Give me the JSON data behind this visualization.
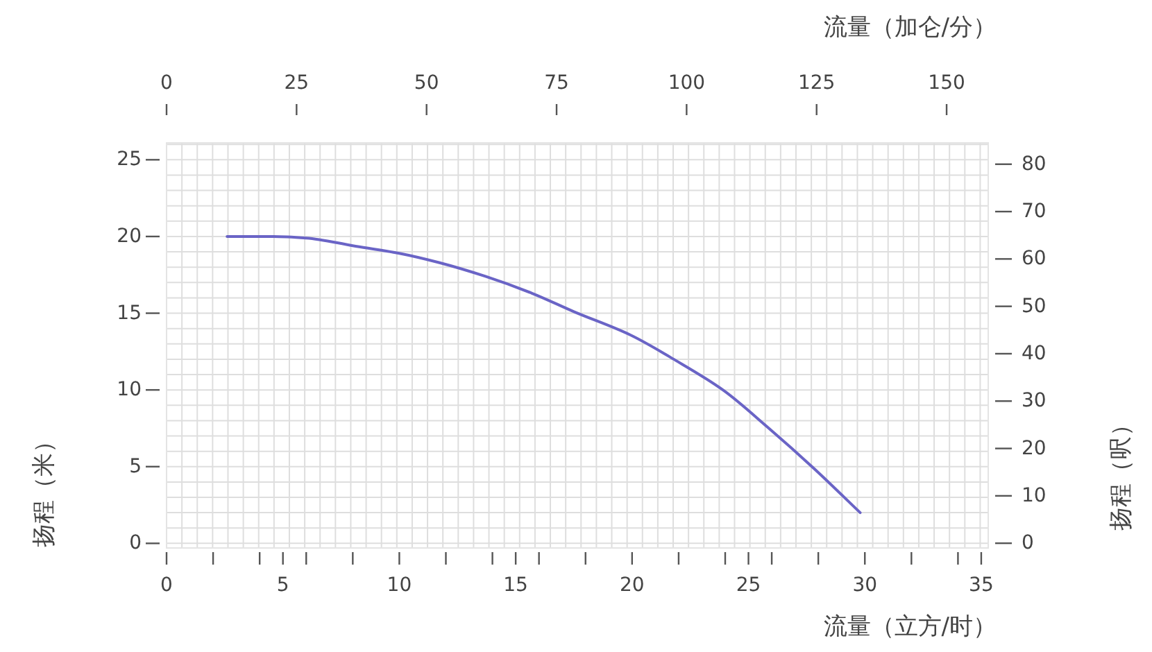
{
  "chart_data": {
    "type": "line",
    "xlabel": "流量（立方/时）",
    "x2label": "流量（加仑/分）",
    "ylabel": "扬程（米）",
    "y2label": "扬程（呎）",
    "xlim": [
      0,
      35.3
    ],
    "xticks": [
      0,
      {
        "value": 2,
        "label": null
      },
      {
        "value": 4,
        "label": null
      },
      5,
      {
        "value": 6,
        "label": null
      },
      {
        "value": 8,
        "label": null
      },
      10,
      {
        "value": 12,
        "label": null
      },
      {
        "value": 14,
        "label": null
      },
      15,
      {
        "value": 16,
        "label": null
      },
      {
        "value": 18,
        "label": null
      },
      20,
      {
        "value": 22,
        "label": null
      },
      {
        "value": 24,
        "label": null
      },
      25,
      {
        "value": 26,
        "label": null
      },
      {
        "value": 28,
        "label": null
      },
      30,
      {
        "value": 32,
        "label": null
      },
      {
        "value": 34,
        "label": null
      },
      35
    ],
    "x2lim": [
      0,
      158
    ],
    "x2ticks": [
      0,
      25,
      50,
      75,
      100,
      125,
      150
    ],
    "ylim": [
      -0.3,
      26.1
    ],
    "yticks": [
      0,
      5,
      10,
      15,
      20,
      25
    ],
    "y2lim": [
      -1,
      84.5
    ],
    "y2ticks": [
      0,
      10,
      20,
      30,
      40,
      50,
      60,
      70,
      80
    ],
    "grid": true,
    "series": [
      {
        "color": "#6a64c6",
        "x": [
          2.6,
          4.6,
          6.0,
          8.0,
          10.0,
          11.7,
          13.7,
          15.7,
          17.5,
          19.9,
          21.9,
          23.9,
          25.8,
          27.8,
          29.8
        ],
        "values": [
          20.0,
          20.0,
          19.9,
          19.4,
          18.9,
          18.3,
          17.4,
          16.3,
          15.1,
          13.6,
          11.9,
          10.0,
          7.6,
          4.9,
          2.0
        ]
      }
    ]
  }
}
